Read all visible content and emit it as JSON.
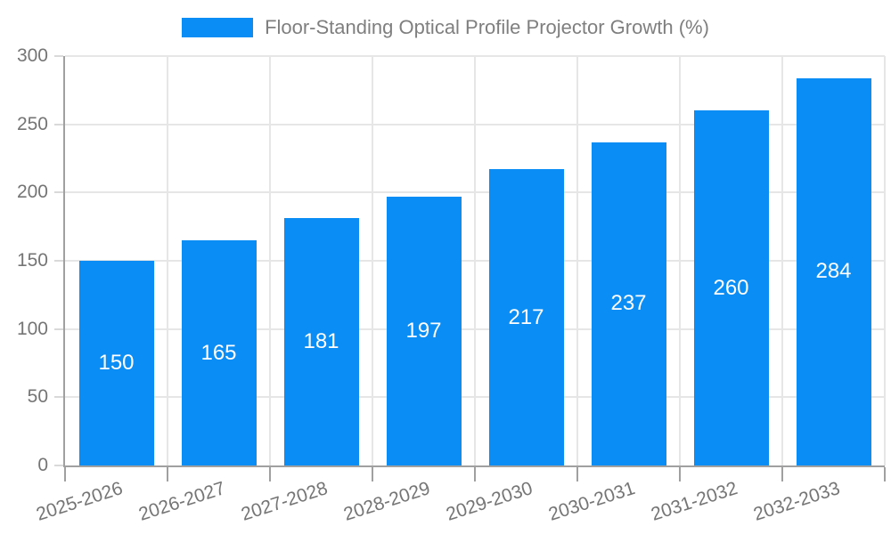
{
  "legend": {
    "items": [
      {
        "label": "Floor-Standing Optical Profile Projector Growth (%)",
        "swatch_icon": "blue-rect-swatch"
      }
    ]
  },
  "chart_data": {
    "type": "bar",
    "title": "Floor-Standing Optical Profile Projector Growth (%)",
    "categories": [
      "2025-2026",
      "2026-2027",
      "2027-2028",
      "2028-2029",
      "2029-2030",
      "2030-2031",
      "2031-2032",
      "2032-2033"
    ],
    "values": [
      150,
      165,
      181,
      197,
      217,
      237,
      260,
      284
    ],
    "xlabel": "",
    "ylabel": "",
    "ylim": [
      0,
      300
    ],
    "yticks": [
      0,
      50,
      100,
      150,
      200,
      250,
      300
    ],
    "grid": true,
    "legend_position": "top-center",
    "bar_value_labels": true
  },
  "colors": {
    "bar": "#0a8df5",
    "bar_value_label": "#ffffff",
    "axis_text": "#757575",
    "legend_text": "#7f7f7f",
    "gridline": "#e6e6e6",
    "axis_line": "#a0a0a0",
    "background": "#ffffff"
  }
}
